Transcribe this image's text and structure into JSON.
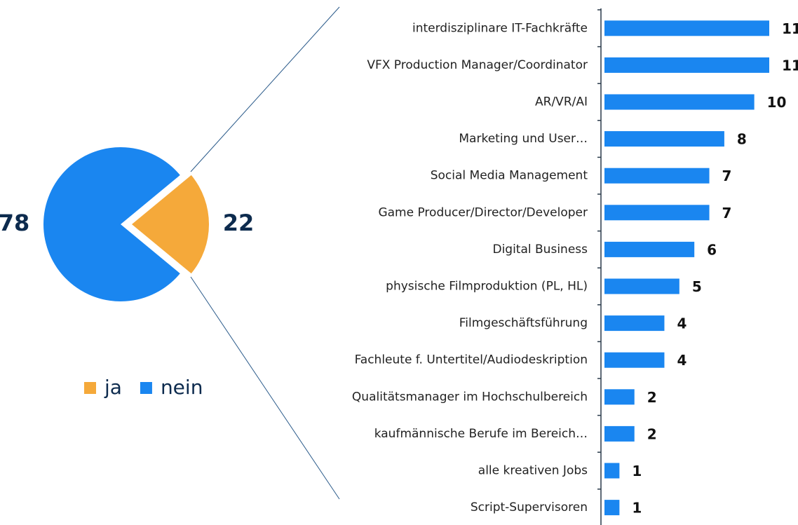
{
  "chart_data": [
    {
      "type": "pie",
      "categories": [
        "ja",
        "nein"
      ],
      "values": [
        22,
        78
      ],
      "colors": [
        "#f5a93a",
        "#1a86f0"
      ],
      "legend": "bottom"
    },
    {
      "type": "bar",
      "orientation": "horizontal",
      "categories": [
        "interdisziplinare IT-Fachkräfte",
        "VFX Production Manager/Coordinator",
        "AR/VR/AI",
        "Marketing und User…",
        "Social Media Management",
        "Game Producer/Director/Developer",
        "Digital Business",
        "physische Filmproduktion (PL, HL)",
        "Filmgeschäftsführung",
        "Fachleute f. Untertitel/Audiodeskription",
        "Qualitätsmanager im Hochschulbereich",
        "kaufmännische Berufe im Bereich…",
        "alle kreativen Jobs",
        "Script-Supervisoren"
      ],
      "values": [
        11,
        11,
        10,
        8,
        7,
        7,
        6,
        5,
        4,
        4,
        2,
        2,
        1,
        1
      ],
      "color": "#1a86f0",
      "xlim": [
        0,
        11
      ]
    }
  ]
}
